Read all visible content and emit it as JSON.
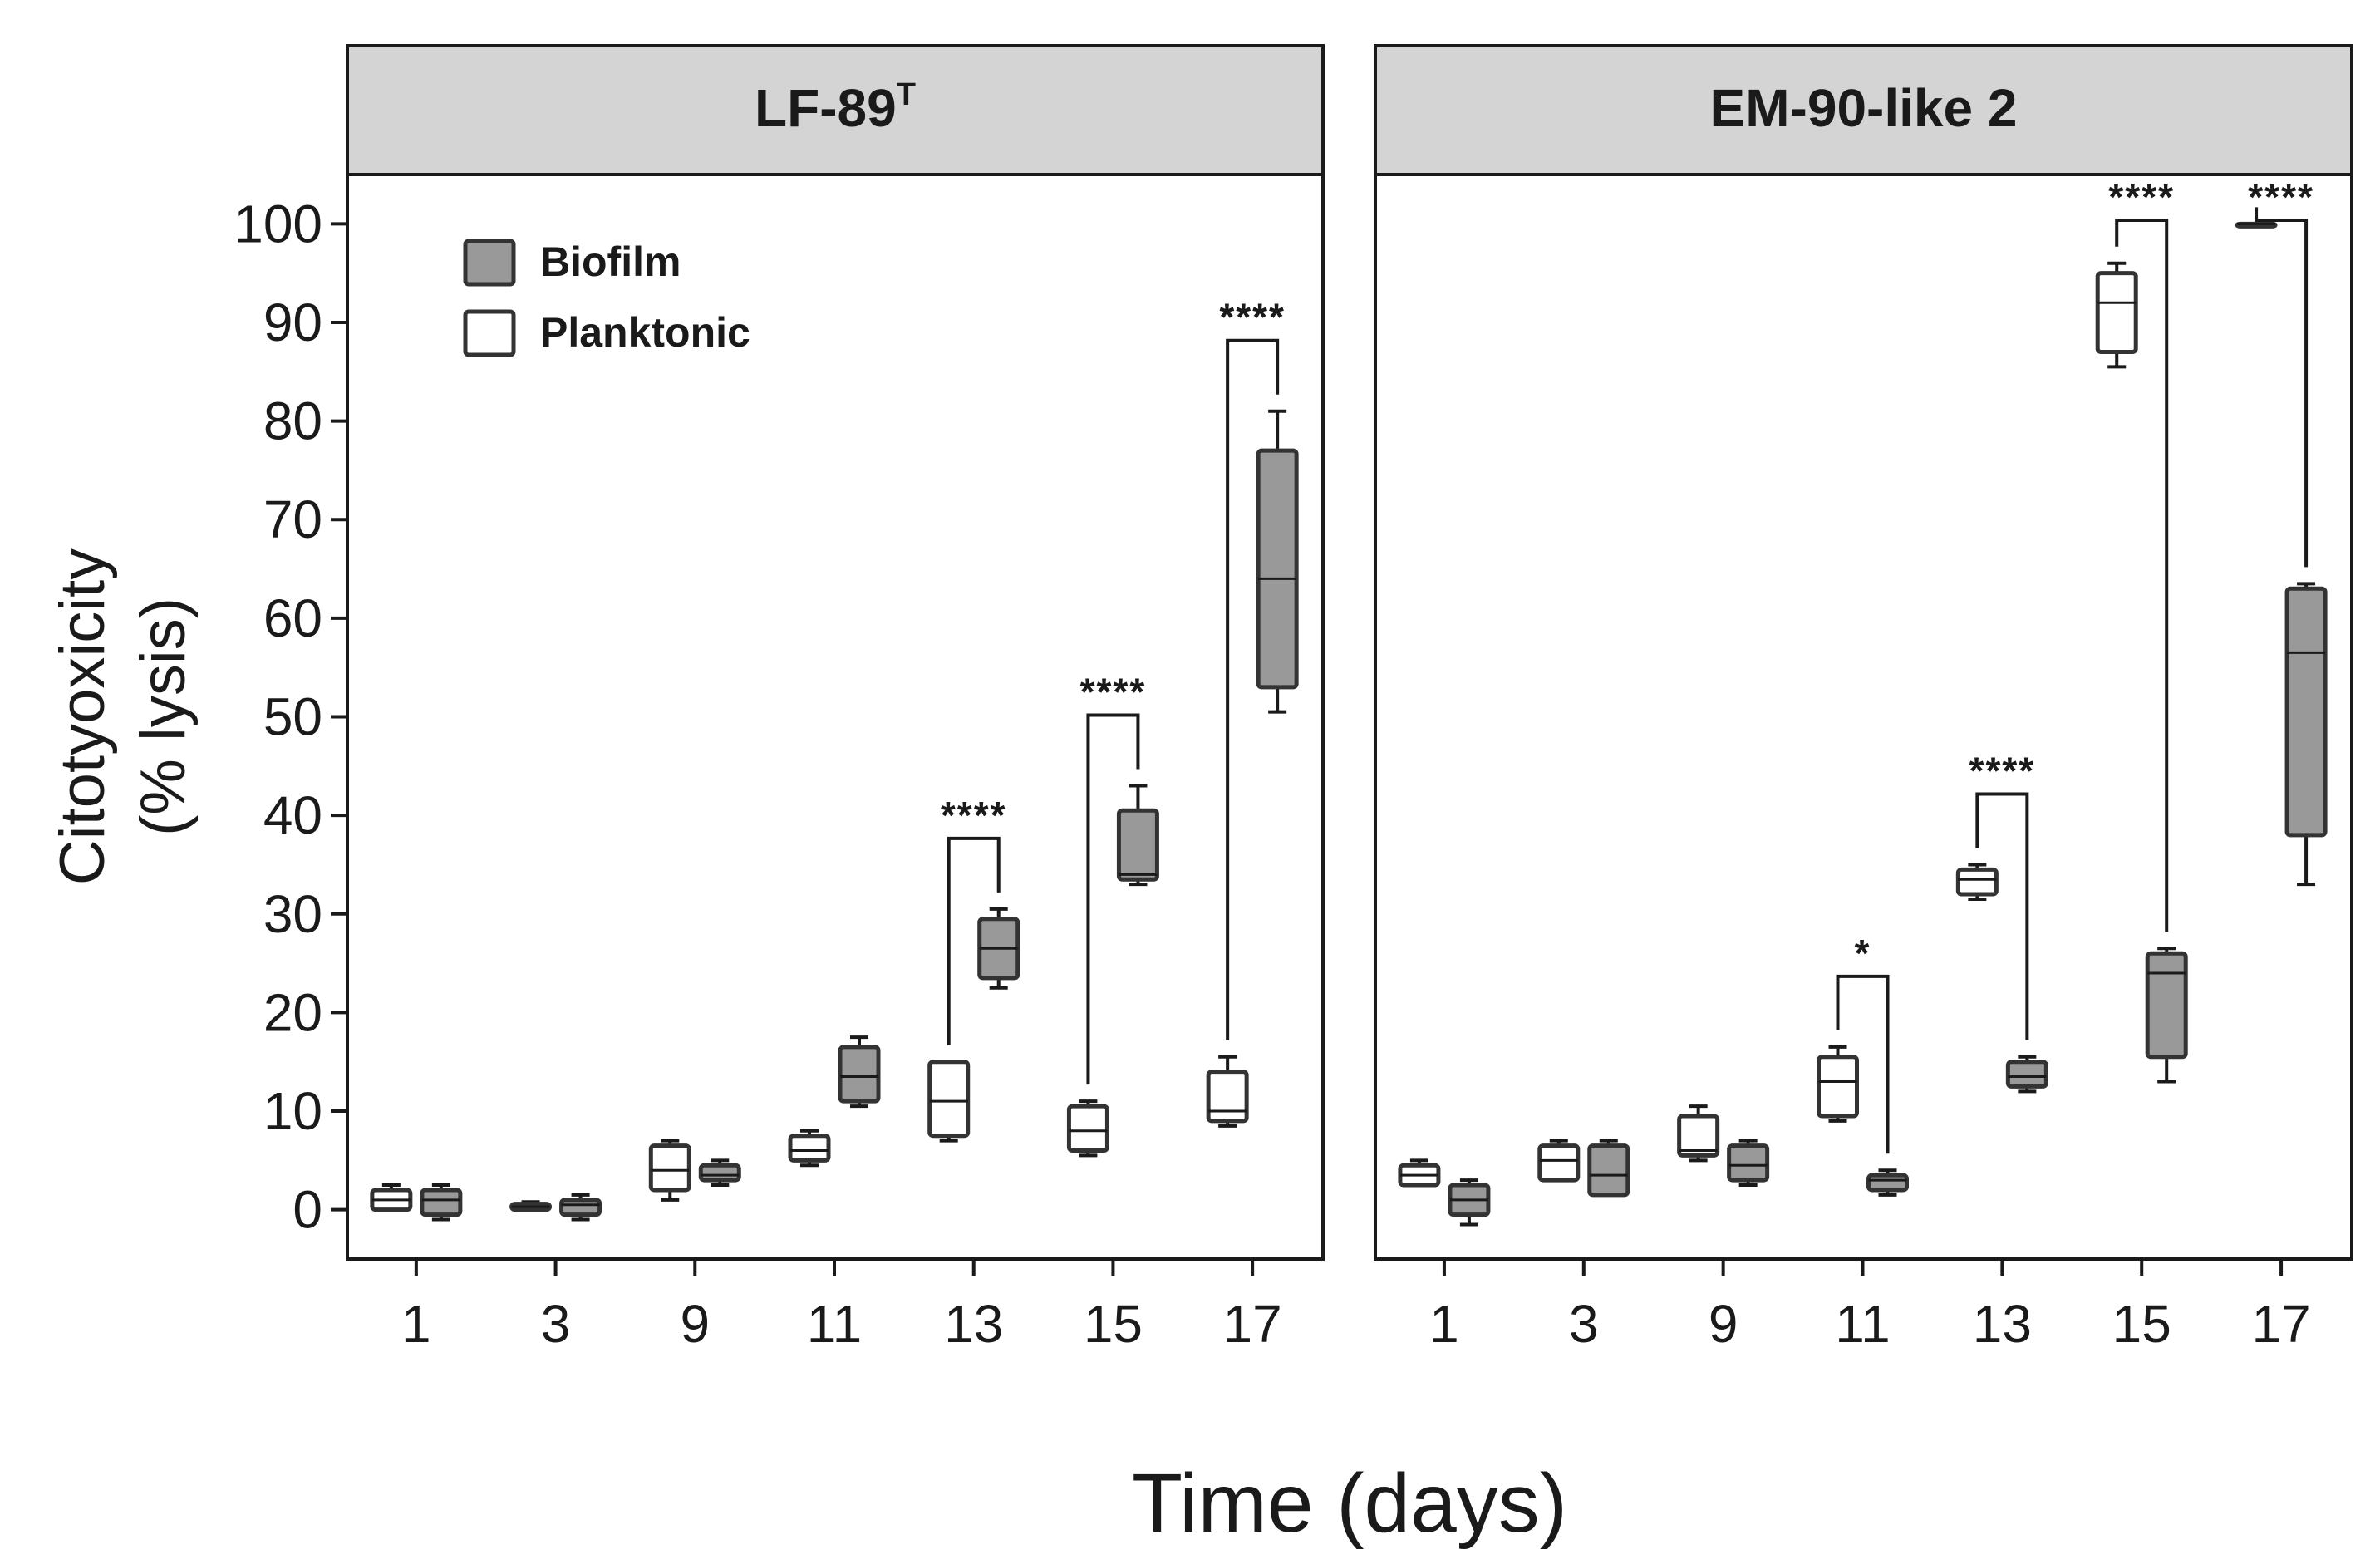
{
  "chart_data": {
    "type": "boxplot",
    "xlabel": "Time (days)",
    "ylabel_line1": "Citotyoxicity",
    "ylabel_line2": "(% lysis)",
    "ylim": [
      -5,
      105
    ],
    "yticks": [
      "0",
      "10",
      "20",
      "30",
      "40",
      "50",
      "60",
      "70",
      "80",
      "90",
      "100"
    ],
    "categories": [
      "1",
      "3",
      "9",
      "11",
      "13",
      "15",
      "17"
    ],
    "legend": [
      {
        "name": "Biofilm",
        "color": "#999999"
      },
      {
        "name": "Planktonic",
        "color": "#ffffff"
      }
    ],
    "panels": [
      {
        "title": "LF-89",
        "title_sup": "T",
        "planktonic": [
          {
            "day": "1",
            "min": 0,
            "q1": 0,
            "median": 1,
            "q3": 2,
            "max": 2.5
          },
          {
            "day": "3",
            "min": 0,
            "q1": 0,
            "median": 0.3,
            "q3": 0.6,
            "max": 0.8
          },
          {
            "day": "9",
            "min": 1,
            "q1": 2,
            "median": 4,
            "q3": 6.5,
            "max": 7
          },
          {
            "day": "11",
            "min": 4.5,
            "q1": 5,
            "median": 6,
            "q3": 7.5,
            "max": 8
          },
          {
            "day": "13",
            "min": 7,
            "q1": 7.5,
            "median": 11,
            "q3": 15,
            "max": 15
          },
          {
            "day": "15",
            "min": 5.5,
            "q1": 6,
            "median": 8,
            "q3": 10.5,
            "max": 11
          },
          {
            "day": "17",
            "min": 8.5,
            "q1": 9,
            "median": 10,
            "q3": 14,
            "max": 15.5
          }
        ],
        "biofilm": [
          {
            "day": "1",
            "min": -1,
            "q1": -0.5,
            "median": 1,
            "q3": 2,
            "max": 2.5
          },
          {
            "day": "3",
            "min": -1,
            "q1": -0.5,
            "median": 0.5,
            "q3": 1,
            "max": 1.5
          },
          {
            "day": "9",
            "min": 2.5,
            "q1": 3,
            "median": 3.5,
            "q3": 4.5,
            "max": 5
          },
          {
            "day": "11",
            "min": 10.5,
            "q1": 11,
            "median": 13.5,
            "q3": 16.5,
            "max": 17.5
          },
          {
            "day": "13",
            "min": 22.5,
            "q1": 23.5,
            "median": 26.5,
            "q3": 29.5,
            "max": 30.5
          },
          {
            "day": "15",
            "min": 33,
            "q1": 33.5,
            "median": 34,
            "q3": 40.5,
            "max": 43
          },
          {
            "day": "17",
            "min": 50.5,
            "q1": 53,
            "median": 64,
            "q3": 77,
            "max": 81
          }
        ],
        "significance": [
          {
            "day": "13",
            "label": "****"
          },
          {
            "day": "15",
            "label": "****"
          },
          {
            "day": "17",
            "label": "****"
          }
        ]
      },
      {
        "title": "EM-90-like 2",
        "title_sup": "",
        "planktonic": [
          {
            "day": "1",
            "min": 2.5,
            "q1": 2.5,
            "median": 3.5,
            "q3": 4.5,
            "max": 5
          },
          {
            "day": "3",
            "min": 3,
            "q1": 3,
            "median": 5,
            "q3": 6.5,
            "max": 7
          },
          {
            "day": "9",
            "min": 5,
            "q1": 5.5,
            "median": 6,
            "q3": 9.5,
            "max": 10.5
          },
          {
            "day": "11",
            "min": 9,
            "q1": 9.5,
            "median": 13,
            "q3": 15.5,
            "max": 16.5
          },
          {
            "day": "13",
            "min": 31.5,
            "q1": 32,
            "median": 33.5,
            "q3": 34.5,
            "max": 35
          },
          {
            "day": "15",
            "min": 85.5,
            "q1": 87,
            "median": 92,
            "q3": 95,
            "max": 96
          },
          {
            "day": "17",
            "min": 100,
            "q1": 100,
            "median": 100,
            "q3": 100,
            "max": 100
          }
        ],
        "biofilm": [
          {
            "day": "1",
            "min": -1.5,
            "q1": -0.5,
            "median": 1,
            "q3": 2.5,
            "max": 3
          },
          {
            "day": "3",
            "min": 1.5,
            "q1": 1.5,
            "median": 3.5,
            "q3": 6.5,
            "max": 7
          },
          {
            "day": "9",
            "min": 2.5,
            "q1": 3,
            "median": 4.5,
            "q3": 6.5,
            "max": 7
          },
          {
            "day": "11",
            "min": 1.5,
            "q1": 2,
            "median": 3,
            "q3": 3.5,
            "max": 4
          },
          {
            "day": "13",
            "min": 12,
            "q1": 12.5,
            "median": 13.5,
            "q3": 15,
            "max": 15.5
          },
          {
            "day": "15",
            "min": 13,
            "q1": 15.5,
            "median": 24,
            "q3": 26,
            "max": 26.5
          },
          {
            "day": "17",
            "min": 33,
            "q1": 38,
            "median": 56.5,
            "q3": 63,
            "max": 63.5
          }
        ],
        "significance": [
          {
            "day": "11",
            "label": "*"
          },
          {
            "day": "13",
            "label": "****"
          },
          {
            "day": "15",
            "label": "****"
          },
          {
            "day": "17",
            "label": "****"
          }
        ]
      }
    ]
  }
}
